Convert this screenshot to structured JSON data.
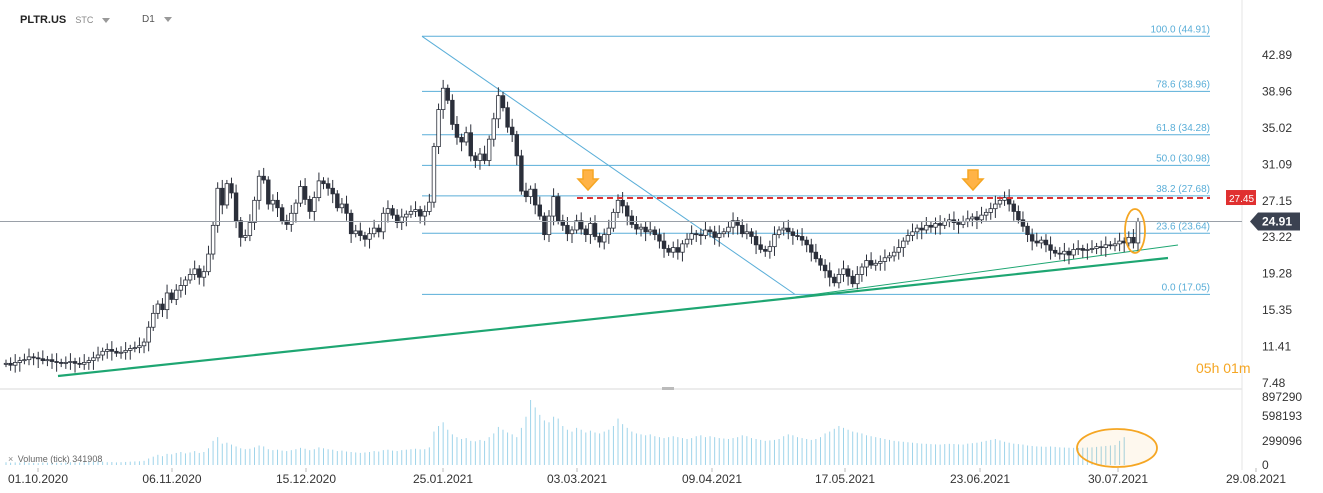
{
  "header": {
    "symbol": "PLTR.US",
    "type": "STC",
    "timeframe": "D1"
  },
  "timer": {
    "hours": "05",
    "h": "h",
    "minutes": "01",
    "m": "m"
  },
  "volume_label": {
    "close": "×",
    "text": "Volume  (tick)  341908"
  },
  "colors": {
    "up_candle": "#ffffff",
    "down_candle": "#2b2f3a",
    "fib_line": "#5aaed8",
    "trend_line": "#1ea672",
    "resistance": "#e03030",
    "marker": "#f5a623",
    "price_badge": "#3b4251",
    "resistance_badge": "#e03030"
  },
  "icons": [
    "down-arrow-icon",
    "highlight-ellipse",
    "close-icon",
    "caret-down-icon"
  ],
  "chart_data": {
    "type": "candlestick",
    "y_ticks": [
      "42.89",
      "38.96",
      "35.02",
      "31.09",
      "27.15",
      "23.22",
      "19.28",
      "15.35",
      "11.41",
      "7.48"
    ],
    "volume_ticks": [
      "897290",
      "598193",
      "299096",
      "0"
    ],
    "x_ticks": [
      "01.10.2020",
      "06.11.2020",
      "15.12.2020",
      "25.01.2021",
      "03.03.2021",
      "09.04.2021",
      "17.05.2021",
      "23.06.2021",
      "30.07.2021",
      "29.08.2021"
    ],
    "current_price": "24.91",
    "resistance_price": "27.45",
    "fibonacci": [
      {
        "label": "100.0 (44.91)",
        "value": 44.91
      },
      {
        "label": "78.6 (38.96)",
        "value": 38.96
      },
      {
        "label": "61.8 (34.28)",
        "value": 34.28
      },
      {
        "label": "50.0 (30.98)",
        "value": 30.98
      },
      {
        "label": "38.2 (27.68)",
        "value": 27.68
      },
      {
        "label": "23.6 (23.64)",
        "value": 23.64
      },
      {
        "label": "0.0 (17.05)",
        "value": 17.05
      }
    ],
    "closes": [
      9.6,
      9.4,
      9.7,
      9.9,
      10.0,
      10.3,
      10.2,
      10.1,
      9.9,
      10.0,
      9.8,
      9.7,
      9.6,
      9.7,
      9.8,
      9.6,
      9.5,
      9.7,
      9.9,
      10.2,
      10.5,
      10.9,
      11.1,
      10.9,
      10.7,
      10.8,
      11.0,
      11.2,
      11.3,
      11.5,
      11.9,
      13.5,
      15.0,
      16.0,
      15.4,
      17.2,
      16.5,
      17.5,
      18.0,
      18.6,
      19.2,
      19.8,
      18.9,
      19.5,
      21.4,
      24.5,
      28.5,
      26.7,
      29.0,
      28.0,
      25.0,
      23.2,
      23.4,
      24.8,
      27.2,
      29.8,
      29.4,
      26.8,
      27.2,
      26.4,
      25.0,
      24.6,
      25.8,
      26.9,
      28.7,
      27.3,
      26.0,
      27.5,
      29.3,
      29.0,
      28.5,
      27.9,
      26.4,
      26.8,
      25.8,
      23.6,
      23.9,
      23.4,
      23.0,
      23.6,
      24.2,
      23.8,
      25.8,
      26.3,
      25.6,
      24.8,
      25.4,
      25.7,
      26.0,
      26.2,
      25.5,
      26.0,
      27.0,
      33.0,
      37.0,
      39.3,
      38.0,
      35.4,
      34.0,
      33.5,
      34.5,
      32.0,
      31.5,
      32.2,
      31.5,
      33.8,
      36.0,
      38.5,
      37.2,
      35.1,
      34.3,
      32.0,
      28.2,
      27.6,
      28.4,
      26.7,
      25.5,
      23.5,
      25.5,
      27.6,
      25.0,
      24.5,
      23.6,
      24.0,
      25.0,
      24.1,
      23.5,
      24.7,
      23.3,
      22.7,
      23.5,
      24.2,
      25.9,
      27.2,
      26.6,
      25.5,
      24.6,
      24.1,
      24.3,
      23.8,
      24.0,
      23.5,
      22.8,
      22.0,
      21.6,
      22.1,
      21.6,
      22.5,
      23.0,
      23.6,
      23.5,
      23.4,
      24.0,
      23.8,
      23.2,
      23.6,
      23.8,
      24.3,
      25.0,
      24.5,
      23.6,
      23.8,
      23.3,
      22.4,
      21.9,
      21.7,
      22.2,
      23.5,
      24.0,
      24.2,
      23.8,
      23.4,
      23.3,
      22.9,
      22.4,
      21.6,
      20.9,
      20.2,
      19.6,
      18.9,
      18.3,
      19.2,
      19.8,
      19.0,
      18.2,
      19.2,
      20.0,
      20.7,
      20.2,
      20.4,
      20.6,
      21.0,
      21.2,
      21.6,
      22.1,
      22.8,
      23.4,
      23.8,
      24.2,
      24.0,
      24.5,
      24.3,
      24.7,
      24.5,
      24.9,
      25.1,
      24.8,
      24.6,
      24.9,
      25.2,
      25.4,
      25.1,
      25.6,
      25.9,
      26.3,
      26.8,
      27.2,
      27.5,
      26.8,
      26.0,
      25.1,
      24.4,
      23.5,
      22.8,
      22.6,
      22.9,
      22.4,
      21.8,
      21.5,
      21.4,
      21.7,
      21.3,
      21.9,
      22.0,
      21.8,
      21.9,
      22.0,
      22.2,
      22.1,
      22.4,
      22.3,
      22.5,
      22.8,
      22.6,
      23.2,
      22.6,
      24.91
    ],
    "volumes": [
      30,
      25,
      28,
      26,
      32,
      24,
      22,
      20,
      26,
      25,
      28,
      24,
      22,
      26,
      30,
      28,
      26,
      30,
      34,
      38,
      40,
      36,
      30,
      32,
      28,
      30,
      33,
      36,
      38,
      40,
      45,
      70,
      90,
      110,
      95,
      120,
      115,
      130,
      140,
      125,
      135,
      150,
      130,
      140,
      180,
      260,
      300,
      230,
      240,
      220,
      200,
      180,
      170,
      175,
      190,
      210,
      200,
      170,
      160,
      165,
      155,
      150,
      160,
      170,
      185,
      175,
      160,
      170,
      190,
      180,
      170,
      165,
      150,
      155,
      145,
      140,
      135,
      130,
      135,
      140,
      150,
      145,
      160,
      165,
      155,
      150,
      160,
      165,
      170,
      175,
      168,
      170,
      190,
      360,
      420,
      460,
      380,
      330,
      300,
      280,
      290,
      260,
      255,
      270,
      260,
      300,
      340,
      410,
      380,
      350,
      330,
      300,
      400,
      520,
      700,
      620,
      540,
      480,
      460,
      520,
      500,
      420,
      380,
      360,
      400,
      380,
      350,
      370,
      350,
      340,
      360,
      380,
      420,
      500,
      440,
      400,
      360,
      340,
      330,
      320,
      330,
      310,
      300,
      290,
      300,
      310,
      300,
      290,
      280,
      290,
      310,
      320,
      300,
      310,
      300,
      290,
      285,
      280,
      290,
      300,
      320,
      310,
      290,
      280,
      270,
      260,
      265,
      270,
      280,
      310,
      330,
      320,
      300,
      290,
      280,
      270,
      280,
      300,
      340,
      360,
      390,
      420,
      400,
      380,
      360,
      350,
      340,
      320,
      310,
      300,
      290,
      280,
      270,
      260,
      255,
      250,
      245,
      240,
      235,
      230,
      228,
      225,
      222,
      220,
      225,
      228,
      226,
      222,
      220,
      230,
      235,
      240,
      250,
      260,
      270,
      280,
      265,
      250,
      240,
      230,
      225,
      220,
      210,
      205,
      200,
      198,
      196,
      200,
      195,
      190,
      188,
      186,
      185,
      184,
      186,
      188,
      190,
      195,
      200,
      205,
      210,
      215,
      260,
      300
    ],
    "candle_x_start": 0,
    "n_total_slots": 246,
    "ylim": [
      7.48,
      46.0
    ]
  }
}
